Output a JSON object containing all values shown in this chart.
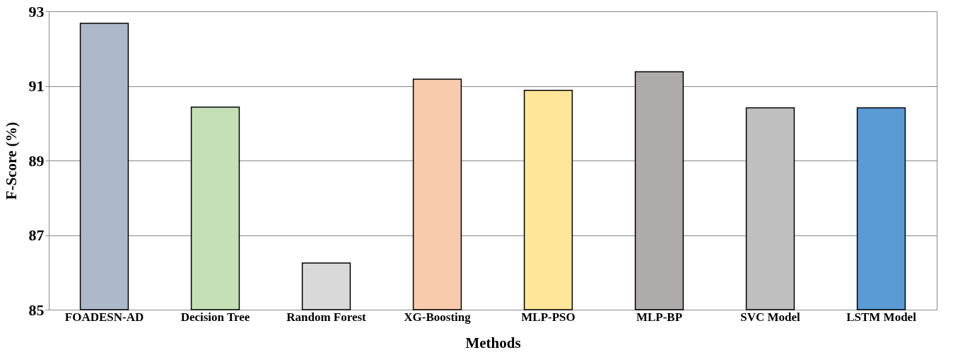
{
  "chart_data": {
    "type": "bar",
    "xlabel": "Methods",
    "ylabel": "F-Score (%)",
    "categories": [
      "FOADESN-AD",
      "Decision Tree",
      "Random Forest",
      "XG-Boosting",
      "MLP-PSO",
      "MLP-BP",
      "SVC Model",
      "LSTM Model"
    ],
    "values": [
      92.68,
      90.43,
      86.25,
      91.18,
      90.88,
      91.38,
      90.41,
      90.41
    ],
    "colors": [
      "#adb9ca",
      "#c5e0b4",
      "#d9d9d9",
      "#f8cbad",
      "#ffe699",
      "#afabab",
      "#bfbfbf",
      "#5b9bd5"
    ],
    "ylim": [
      85,
      93
    ],
    "yticks": [
      85,
      87,
      89,
      91,
      93
    ],
    "grid": "y"
  }
}
